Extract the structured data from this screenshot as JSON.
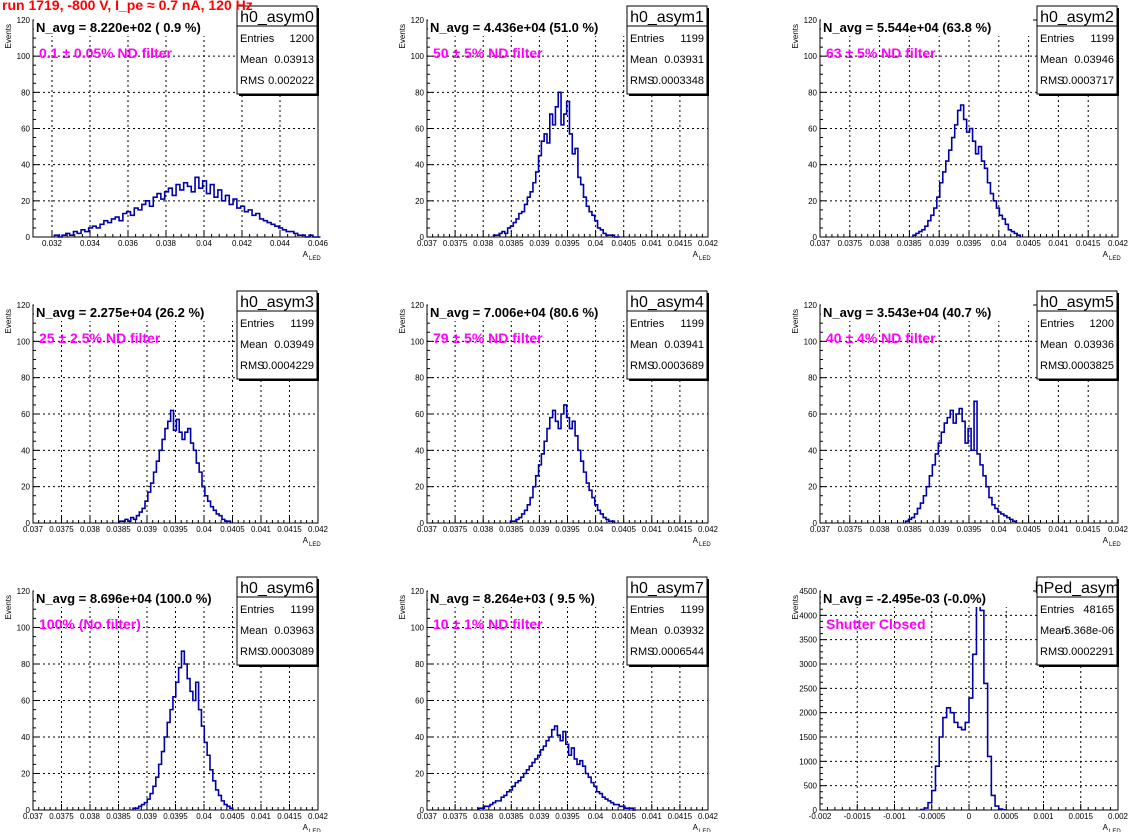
{
  "title": "run 1719,  -800 V, I_pe ≈ 0.7 nA, 120 Hz",
  "stat_labels": {
    "entries": "Entries",
    "mean": "Mean",
    "rms": "RMS"
  },
  "colors": {
    "histogram": "#0000aa",
    "title": "#ff0000",
    "annotation": "#ff00ff"
  },
  "chart_data": [
    {
      "type": "bar",
      "name": "h0_asym0",
      "navg": "N_avg = 8.220e+02 ( 0.9 %)",
      "note": "0.1 ± 0.05% ND filter",
      "entries": "1200",
      "mean": "0.03913",
      "rms": "0.002022",
      "xlabel": "A",
      "xlabel_sub": "LED",
      "ylabel": "Events",
      "xlim": [
        0.031,
        0.046
      ],
      "ylim": [
        0,
        120
      ],
      "grid": true,
      "xticks": [
        0.032,
        0.034,
        0.036,
        0.038,
        0.04,
        0.042,
        0.044,
        0.046
      ],
      "xtick_labels": [
        "0.032",
        "0.034",
        "0.036",
        "0.038",
        "0.04",
        "0.042",
        "0.044",
        "0.046"
      ],
      "yticks": [
        0,
        20,
        40,
        60,
        80,
        100,
        120
      ],
      "ytick_labels": [
        "0",
        "20",
        "40",
        "60",
        "80",
        "100",
        "120"
      ],
      "bin_width": 0.0002,
      "values": [
        1,
        0,
        1,
        2,
        1,
        3,
        2,
        4,
        3,
        5,
        6,
        5,
        7,
        9,
        8,
        10,
        11,
        9,
        13,
        14,
        12,
        16,
        15,
        18,
        20,
        17,
        22,
        24,
        21,
        25,
        27,
        23,
        29,
        26,
        30,
        28,
        25,
        33,
        27,
        31,
        24,
        29,
        22,
        26,
        20,
        23,
        18,
        21,
        16,
        17,
        14,
        15,
        12,
        13,
        10,
        9,
        8,
        7,
        6,
        5,
        4,
        3,
        3,
        2,
        1,
        1,
        0,
        1,
        0,
        0
      ]
    },
    {
      "type": "bar",
      "name": "h0_asym1",
      "navg": "N_avg = 4.436e+04 (51.0 %)",
      "note": "50 ± 5% ND filter",
      "entries": "1199",
      "mean": "0.03931",
      "rms": "0.0003348",
      "xlabel": "A",
      "xlabel_sub": "LED",
      "ylabel": "Events",
      "xlim": [
        0.037,
        0.042
      ],
      "ylim": [
        0,
        120
      ],
      "grid": true,
      "xticks": [
        0.037,
        0.0375,
        0.038,
        0.0385,
        0.039,
        0.0395,
        0.04,
        0.0405,
        0.041,
        0.0415,
        0.042
      ],
      "xtick_labels": [
        "0.037",
        "0.0375",
        "0.038",
        "0.0385",
        "0.039",
        "0.0395",
        "0.04",
        "0.0405",
        "0.041",
        "0.0415",
        "0.042"
      ],
      "yticks": [
        0,
        20,
        40,
        60,
        80,
        100,
        120
      ],
      "ytick_labels": [
        "0",
        "20",
        "40",
        "60",
        "80",
        "100",
        "120"
      ],
      "bin_width": 5e-05,
      "values": [
        1,
        1,
        2,
        3,
        2,
        5,
        6,
        8,
        10,
        13,
        14,
        18,
        22,
        25,
        30,
        36,
        45,
        53,
        57,
        52,
        68,
        62,
        72,
        80,
        62,
        68,
        75,
        57,
        46,
        49,
        33,
        29,
        22,
        17,
        14,
        12,
        9,
        5,
        4,
        2,
        1,
        1,
        1,
        0,
        0
      ]
    },
    {
      "type": "bar",
      "name": "h0_asym2",
      "navg": "N_avg = 5.544e+04 (63.8 %)",
      "note": "63 ± 5% ND filter",
      "entries": "1199",
      "mean": "0.03946",
      "rms": "0.0003717",
      "xlabel": "A",
      "xlabel_sub": "LED",
      "ylabel": "Events",
      "xlim": [
        0.037,
        0.042
      ],
      "ylim": [
        0,
        120
      ],
      "grid": true,
      "xticks": [
        0.037,
        0.0375,
        0.038,
        0.0385,
        0.039,
        0.0395,
        0.04,
        0.0405,
        0.041,
        0.0415,
        0.042
      ],
      "xtick_labels": [
        "0.037",
        "0.0375",
        "0.038",
        "0.0385",
        "0.039",
        "0.0395",
        "0.04",
        "0.0405",
        "0.041",
        "0.0415",
        "0.042"
      ],
      "yticks": [
        0,
        20,
        40,
        60,
        80,
        100,
        120
      ],
      "ytick_labels": [
        "0",
        "20",
        "40",
        "60",
        "80",
        "100",
        "120"
      ],
      "bin_width": 5e-05,
      "values": [
        1,
        2,
        3,
        4,
        6,
        9,
        12,
        16,
        22,
        30,
        36,
        42,
        48,
        55,
        62,
        70,
        73,
        65,
        58,
        60,
        53,
        46,
        50,
        42,
        38,
        30,
        24,
        20,
        16,
        12,
        10,
        7,
        4,
        3,
        2,
        1
      ]
    },
    {
      "type": "bar",
      "name": "h0_asym3",
      "navg": "N_avg = 2.275e+04 (26.2 %)",
      "note": "25 ± 2.5% ND filter",
      "entries": "1199",
      "mean": "0.03949",
      "rms": "0.0004229",
      "xlabel": "A",
      "xlabel_sub": "LED",
      "ylabel": "Events",
      "xlim": [
        0.037,
        0.042
      ],
      "ylim": [
        0,
        120
      ],
      "grid": true,
      "xticks": [
        0.037,
        0.0375,
        0.038,
        0.0385,
        0.039,
        0.0395,
        0.04,
        0.0405,
        0.041,
        0.0415,
        0.042
      ],
      "xtick_labels": [
        "0.037",
        "0.0375",
        "0.038",
        "0.0385",
        "0.039",
        "0.0395",
        "0.04",
        "0.0405",
        "0.041",
        "0.0415",
        "0.042"
      ],
      "yticks": [
        0,
        20,
        40,
        60,
        80,
        100,
        120
      ],
      "ytick_labels": [
        "0",
        "20",
        "40",
        "60",
        "80",
        "100",
        "120"
      ],
      "bin_width": 5e-05,
      "values": [
        1,
        1,
        2,
        1,
        3,
        2,
        4,
        6,
        8,
        12,
        17,
        22,
        28,
        34,
        40,
        46,
        52,
        56,
        62,
        51,
        57,
        50,
        46,
        50,
        52,
        44,
        40,
        33,
        28,
        20,
        15,
        12,
        9,
        7,
        5,
        4,
        2,
        1,
        1
      ]
    },
    {
      "type": "bar",
      "name": "h0_asym4",
      "navg": "N_avg = 7.006e+04 (80.6 %)",
      "note": "79 ± 5% ND filter",
      "entries": "1199",
      "mean": "0.03941",
      "rms": "0.0003689",
      "xlabel": "A",
      "xlabel_sub": "LED",
      "ylabel": "Events",
      "xlim": [
        0.037,
        0.042
      ],
      "ylim": [
        0,
        120
      ],
      "grid": true,
      "xticks": [
        0.037,
        0.0375,
        0.038,
        0.0385,
        0.039,
        0.0395,
        0.04,
        0.0405,
        0.041,
        0.0415,
        0.042
      ],
      "xtick_labels": [
        "0.037",
        "0.0375",
        "0.038",
        "0.0385",
        "0.039",
        "0.0395",
        "0.04",
        "0.0405",
        "0.041",
        "0.0415",
        "0.042"
      ],
      "yticks": [
        0,
        20,
        40,
        60,
        80,
        100,
        120
      ],
      "ytick_labels": [
        "0",
        "20",
        "40",
        "60",
        "80",
        "100",
        "120"
      ],
      "bin_width": 5e-05,
      "values": [
        1,
        1,
        2,
        3,
        5,
        7,
        10,
        14,
        20,
        26,
        32,
        38,
        45,
        52,
        58,
        62,
        56,
        52,
        60,
        65,
        58,
        52,
        56,
        48,
        40,
        34,
        28,
        22,
        18,
        14,
        10,
        7,
        5,
        3,
        2,
        1,
        1
      ]
    },
    {
      "type": "bar",
      "name": "h0_asym5",
      "navg": "N_avg = 3.543e+04 (40.7 %)",
      "note": "40 ± 4% ND filter",
      "entries": "1200",
      "mean": "0.03936",
      "rms": "0.0003825",
      "xlabel": "A",
      "xlabel_sub": "LED",
      "ylabel": "Events",
      "xlim": [
        0.037,
        0.042
      ],
      "ylim": [
        0,
        120
      ],
      "grid": true,
      "xticks": [
        0.037,
        0.0375,
        0.038,
        0.0385,
        0.039,
        0.0395,
        0.04,
        0.0405,
        0.041,
        0.0415,
        0.042
      ],
      "xtick_labels": [
        "0.037",
        "0.0375",
        "0.038",
        "0.0385",
        "0.039",
        "0.0395",
        "0.04",
        "0.0405",
        "0.041",
        "0.0415",
        "0.042"
      ],
      "yticks": [
        0,
        20,
        40,
        60,
        80,
        100,
        120
      ],
      "ytick_labels": [
        "0",
        "20",
        "40",
        "60",
        "80",
        "100",
        "120"
      ],
      "bin_width": 5e-05,
      "values": [
        1,
        2,
        3,
        5,
        8,
        11,
        15,
        20,
        26,
        32,
        38,
        44,
        50,
        55,
        58,
        62,
        55,
        60,
        63,
        56,
        44,
        52,
        40,
        67,
        38,
        32,
        26,
        20,
        14,
        10,
        8,
        6,
        5,
        4,
        3,
        2,
        1
      ]
    },
    {
      "type": "bar",
      "name": "h0_asym6",
      "navg": "N_avg = 8.696e+04 (100.0 %)",
      "note": "100% (No filter)",
      "entries": "1199",
      "mean": "0.03963",
      "rms": "0.0003089",
      "xlabel": "A",
      "xlabel_sub": "LED",
      "ylabel": "Events",
      "xlim": [
        0.037,
        0.042
      ],
      "ylim": [
        0,
        120
      ],
      "grid": true,
      "xticks": [
        0.037,
        0.0375,
        0.038,
        0.0385,
        0.039,
        0.0395,
        0.04,
        0.0405,
        0.041,
        0.0415,
        0.042
      ],
      "xtick_labels": [
        "0.037",
        "0.0375",
        "0.038",
        "0.0385",
        "0.039",
        "0.0395",
        "0.04",
        "0.0405",
        "0.041",
        "0.0415",
        "0.042"
      ],
      "yticks": [
        0,
        20,
        40,
        60,
        80,
        100,
        120
      ],
      "ytick_labels": [
        "0",
        "20",
        "40",
        "60",
        "80",
        "100",
        "120"
      ],
      "bin_width": 5e-05,
      "values": [
        1,
        1,
        2,
        3,
        4,
        6,
        9,
        13,
        18,
        25,
        32,
        40,
        48,
        55,
        62,
        70,
        78,
        87,
        80,
        72,
        65,
        60,
        70,
        55,
        46,
        37,
        30,
        22,
        16,
        11,
        8,
        5,
        3,
        2,
        1
      ]
    },
    {
      "type": "bar",
      "name": "h0_asym7",
      "navg": "N_avg = 8.264e+03 ( 9.5 %)",
      "note": "10 ± 1% ND filter",
      "entries": "1199",
      "mean": "0.03932",
      "rms": "0.0006544",
      "xlabel": "A",
      "xlabel_sub": "LED",
      "ylabel": "Events",
      "xlim": [
        0.037,
        0.042
      ],
      "ylim": [
        0,
        120
      ],
      "grid": true,
      "xticks": [
        0.037,
        0.0375,
        0.038,
        0.0385,
        0.039,
        0.0395,
        0.04,
        0.0405,
        0.041,
        0.0415,
        0.042
      ],
      "xtick_labels": [
        "0.037",
        "0.0375",
        "0.038",
        "0.0385",
        "0.039",
        "0.0395",
        "0.04",
        "0.0405",
        "0.041",
        "0.0415",
        "0.042"
      ],
      "yticks": [
        0,
        20,
        40,
        60,
        80,
        100,
        120
      ],
      "ytick_labels": [
        "0",
        "20",
        "40",
        "60",
        "80",
        "100",
        "120"
      ],
      "bin_width": 5e-05,
      "values": [
        1,
        1,
        2,
        2,
        3,
        4,
        5,
        5,
        7,
        8,
        10,
        11,
        13,
        15,
        16,
        18,
        20,
        22,
        24,
        26,
        28,
        30,
        33,
        35,
        38,
        40,
        44,
        46,
        41,
        38,
        43,
        36,
        30,
        34,
        28,
        25,
        27,
        24,
        20,
        18,
        15,
        13,
        10,
        9,
        7,
        6,
        5,
        4,
        3,
        3,
        2,
        2,
        1,
        1,
        1,
        0
      ]
    },
    {
      "type": "bar",
      "name": "hPed_asym",
      "navg": "N_avg = -2.495e-03 (-0.0%)",
      "note": "Shutter Closed",
      "entries": "48165",
      "mean": "-5.368e-06",
      "rms": "0.0002291",
      "xlabel": "A",
      "xlabel_sub": "LED",
      "ylabel": "Events",
      "xlim": [
        -0.002,
        0.002
      ],
      "ylim": [
        0,
        4500
      ],
      "grid": true,
      "xticks": [
        -0.002,
        -0.0015,
        -0.001,
        -0.0005,
        0,
        0.0005,
        0.001,
        0.0015,
        0.002
      ],
      "xtick_labels": [
        "-0.002",
        "-0.0015",
        "-0.001",
        "-0.0005",
        "0",
        "0.0005",
        "0.001",
        "0.0015",
        "0.002"
      ],
      "yticks": [
        0,
        500,
        1000,
        1500,
        2000,
        2500,
        3000,
        3500,
        4000,
        4500
      ],
      "ytick_labels": [
        "0",
        "500",
        "1000",
        "1500",
        "2000",
        "2500",
        "3000",
        "3500",
        "4000",
        "4500"
      ],
      "bin_width": 5e-05,
      "values": [
        10,
        40,
        150,
        400,
        900,
        1500,
        1900,
        2100,
        2000,
        1800,
        1700,
        1650,
        1800,
        2300,
        3200,
        4300,
        4100,
        2600,
        1100,
        300,
        80,
        20,
        5
      ],
      "x_start": -0.00065
    }
  ]
}
